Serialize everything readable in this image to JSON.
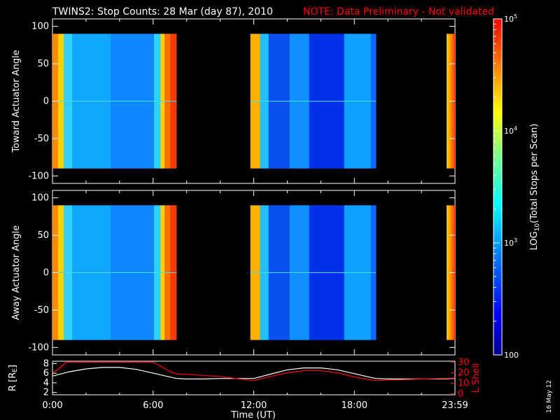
{
  "title": "TWINS2: Stop Counts: 28 Mar (day  87), 2010",
  "note": "NOTE: Data Preliminary - Not validated",
  "note_color": "#ff0000",
  "date_stamp": "16 May 12",
  "x_ticks": [
    "0:00",
    "6:00",
    "12:00",
    "18:00",
    "23:59"
  ],
  "x_label": "Time (UT)",
  "colorbar": {
    "label": "LOG10(Total Stops per Scan)",
    "ticks": [
      "105",
      "104",
      "103",
      "100"
    ],
    "range": [
      100,
      100000
    ],
    "scale": "log"
  },
  "chart_data": [
    {
      "type": "heatmap",
      "ylabel": "Toward Actuator Angle",
      "x_range_hours": [
        0,
        24
      ],
      "ylim": [
        -110,
        110
      ],
      "y_ticks": [
        -100,
        -50,
        0,
        50,
        100
      ],
      "data_y_range": [
        -90,
        90
      ],
      "data_gaps_hours": [
        [
          7.4,
          11.8
        ],
        [
          19.3,
          23.5
        ]
      ],
      "data_segments_hours": [
        [
          0,
          7.4
        ],
        [
          11.8,
          19.3
        ],
        [
          23.5,
          24
        ]
      ]
    },
    {
      "type": "heatmap",
      "ylabel": "Away Actuator Angle",
      "x_range_hours": [
        0,
        24
      ],
      "ylim": [
        -110,
        110
      ],
      "y_ticks": [
        -100,
        -50,
        0,
        50,
        100
      ],
      "data_y_range": [
        -90,
        90
      ],
      "data_gaps_hours": [
        [
          7.4,
          11.8
        ],
        [
          19.3,
          23.5
        ]
      ],
      "data_segments_hours": [
        [
          0,
          7.4
        ],
        [
          11.8,
          19.3
        ],
        [
          23.5,
          24
        ]
      ]
    },
    {
      "type": "line",
      "ylabel": "R [RE]",
      "y2label": "L Shell",
      "y_ticks": [
        2,
        4,
        6,
        8
      ],
      "ylim": [
        1.5,
        8.5
      ],
      "y2_ticks": [
        0,
        10,
        20,
        30
      ],
      "y2lim": [
        -1,
        31
      ],
      "series": [
        {
          "color": "#ffffff",
          "axis": "left",
          "x": [
            0,
            1,
            2,
            3,
            4,
            5,
            6,
            7,
            7.4,
            8,
            9,
            10,
            11,
            12,
            13,
            14,
            15,
            16,
            17,
            18,
            19,
            19.3,
            20,
            21,
            22,
            23,
            24
          ],
          "y": [
            5.4,
            6.3,
            6.9,
            7.2,
            7.2,
            6.8,
            6.0,
            5.2,
            4.9,
            4.8,
            4.8,
            4.9,
            4.9,
            4.9,
            5.8,
            6.7,
            7.1,
            7.1,
            6.7,
            5.9,
            5.1,
            4.9,
            4.8,
            4.8,
            4.8,
            4.8,
            4.9
          ]
        },
        {
          "color": "#ff0000",
          "axis": "right",
          "x": [
            0,
            0.4,
            0.8,
            6.0,
            6.5,
            7.0,
            7.4,
            8,
            9,
            10,
            11,
            12,
            13,
            14,
            15,
            16,
            17,
            18,
            19,
            19.3,
            20,
            21,
            22,
            23,
            24
          ],
          "y": [
            20,
            24,
            30,
            30,
            26,
            21,
            19,
            18.5,
            17.5,
            16.5,
            14.5,
            12.5,
            16.5,
            20,
            22,
            22,
            20,
            16,
            13,
            12.5,
            13,
            13.5,
            14,
            14.5,
            15
          ]
        }
      ]
    }
  ]
}
